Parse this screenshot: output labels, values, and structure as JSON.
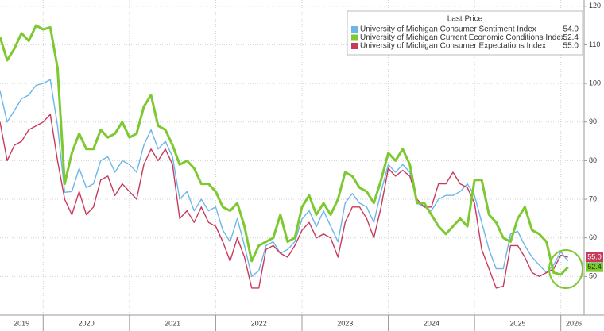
{
  "chart_data": {
    "type": "line",
    "legend_title": "Last Price",
    "x": [
      2019.5,
      2019.583,
      2019.667,
      2019.75,
      2019.833,
      2019.917,
      2020,
      2020.083,
      2020.167,
      2020.25,
      2020.333,
      2020.417,
      2020.5,
      2020.583,
      2020.667,
      2020.75,
      2020.833,
      2020.917,
      2021,
      2021.083,
      2021.167,
      2021.25,
      2021.333,
      2021.417,
      2021.5,
      2021.583,
      2021.667,
      2021.75,
      2021.833,
      2021.917,
      2022,
      2022.083,
      2022.167,
      2022.25,
      2022.333,
      2022.417,
      2022.5,
      2022.583,
      2022.667,
      2022.75,
      2022.833,
      2022.917,
      2023,
      2023.083,
      2023.167,
      2023.25,
      2023.333,
      2023.417,
      2023.5,
      2023.583,
      2023.667,
      2023.75,
      2023.833,
      2023.917,
      2024,
      2024.083,
      2024.167,
      2024.25,
      2024.333,
      2024.417,
      2024.5,
      2024.583,
      2024.667,
      2024.75,
      2024.833,
      2024.917,
      2025,
      2025.083,
      2025.167,
      2025.25,
      2025.333,
      2025.417,
      2025.5,
      2025.583,
      2025.667,
      2025.75,
      2025.833,
      2025.917,
      2026,
      2026.083
    ],
    "series": [
      {
        "name": "University of Michigan Consumer Sentiment Index",
        "color": "#6db6e8",
        "width": 1.4,
        "last_label": "54.0",
        "values": [
          98,
          90,
          93,
          96,
          97,
          99.5,
          100,
          101,
          89,
          71.8,
          72,
          78,
          73,
          74,
          80,
          81,
          77,
          80,
          79,
          77,
          84,
          88,
          83,
          85,
          81,
          70,
          72,
          67,
          70,
          67,
          68,
          62,
          59,
          65,
          58,
          50,
          51.5,
          58,
          59,
          56,
          57,
          59,
          64.9,
          67,
          62.9,
          67,
          63,
          59,
          69,
          71.5,
          69,
          68,
          64,
          72,
          79,
          77,
          79,
          77,
          69,
          68,
          67,
          70,
          71,
          71,
          72,
          74,
          71,
          64,
          57,
          52,
          52,
          61,
          61.7,
          58,
          55,
          53,
          51,
          53,
          56.4,
          54.0
        ]
      },
      {
        "name": "University of Michigan Current Economic Conditions Index",
        "color": "#7ec832",
        "width": 3,
        "last_label": "52.4",
        "values": [
          112,
          106,
          109,
          113,
          111,
          115,
          114,
          114.5,
          104,
          74,
          82,
          87,
          83,
          83,
          88,
          86,
          87,
          90,
          86,
          87,
          94,
          97,
          89,
          88,
          84,
          79,
          80,
          78,
          74,
          74,
          72,
          68,
          67,
          69,
          63,
          54,
          58,
          59,
          60,
          66,
          59,
          60,
          68,
          71,
          66,
          69,
          66,
          70,
          77,
          76,
          73,
          72,
          69,
          75,
          82,
          80,
          83,
          79,
          69,
          69,
          66,
          63,
          61,
          63,
          65,
          63,
          75,
          75,
          66,
          64,
          60,
          59,
          65,
          68,
          62,
          61,
          59,
          51,
          50.5,
          52.4
        ]
      },
      {
        "name": "University of Michigan Consumer Expectations Index",
        "color": "#c83a5c",
        "width": 1.4,
        "last_label": "55.0",
        "values": [
          90,
          80,
          84,
          85,
          88,
          89,
          90,
          92,
          80,
          70,
          66,
          72,
          66,
          68,
          75,
          76,
          71,
          74,
          72,
          70,
          79,
          83,
          80,
          83,
          79,
          65,
          67,
          64,
          68,
          64,
          63,
          59,
          54,
          60,
          55,
          47,
          47,
          57,
          58,
          56,
          55,
          58,
          62,
          64,
          60,
          61,
          60,
          55,
          64,
          68,
          68,
          65,
          60,
          68,
          78,
          76,
          77.5,
          76,
          70,
          68,
          68,
          74,
          74,
          77,
          74,
          73,
          69,
          57,
          52,
          47,
          47.5,
          58,
          58,
          55,
          51,
          50,
          51,
          52,
          55.5,
          55.0
        ]
      }
    ],
    "xlim": [
      2019.5,
      2026.27
    ],
    "xticks": [
      {
        "value": 2019.75,
        "label": "2019"
      },
      {
        "value": 2020.5,
        "label": "2020"
      },
      {
        "value": 2021.5,
        "label": "2021"
      },
      {
        "value": 2022.5,
        "label": "2022"
      },
      {
        "value": 2023.5,
        "label": "2023"
      },
      {
        "value": 2024.5,
        "label": "2024"
      },
      {
        "value": 2025.5,
        "label": "2025"
      },
      {
        "value": 2026.15,
        "label": "2026"
      }
    ],
    "ylim": [
      40,
      121.6
    ],
    "yticks": [
      50,
      60,
      70,
      80,
      90,
      100,
      110,
      120
    ],
    "grid": true
  }
}
